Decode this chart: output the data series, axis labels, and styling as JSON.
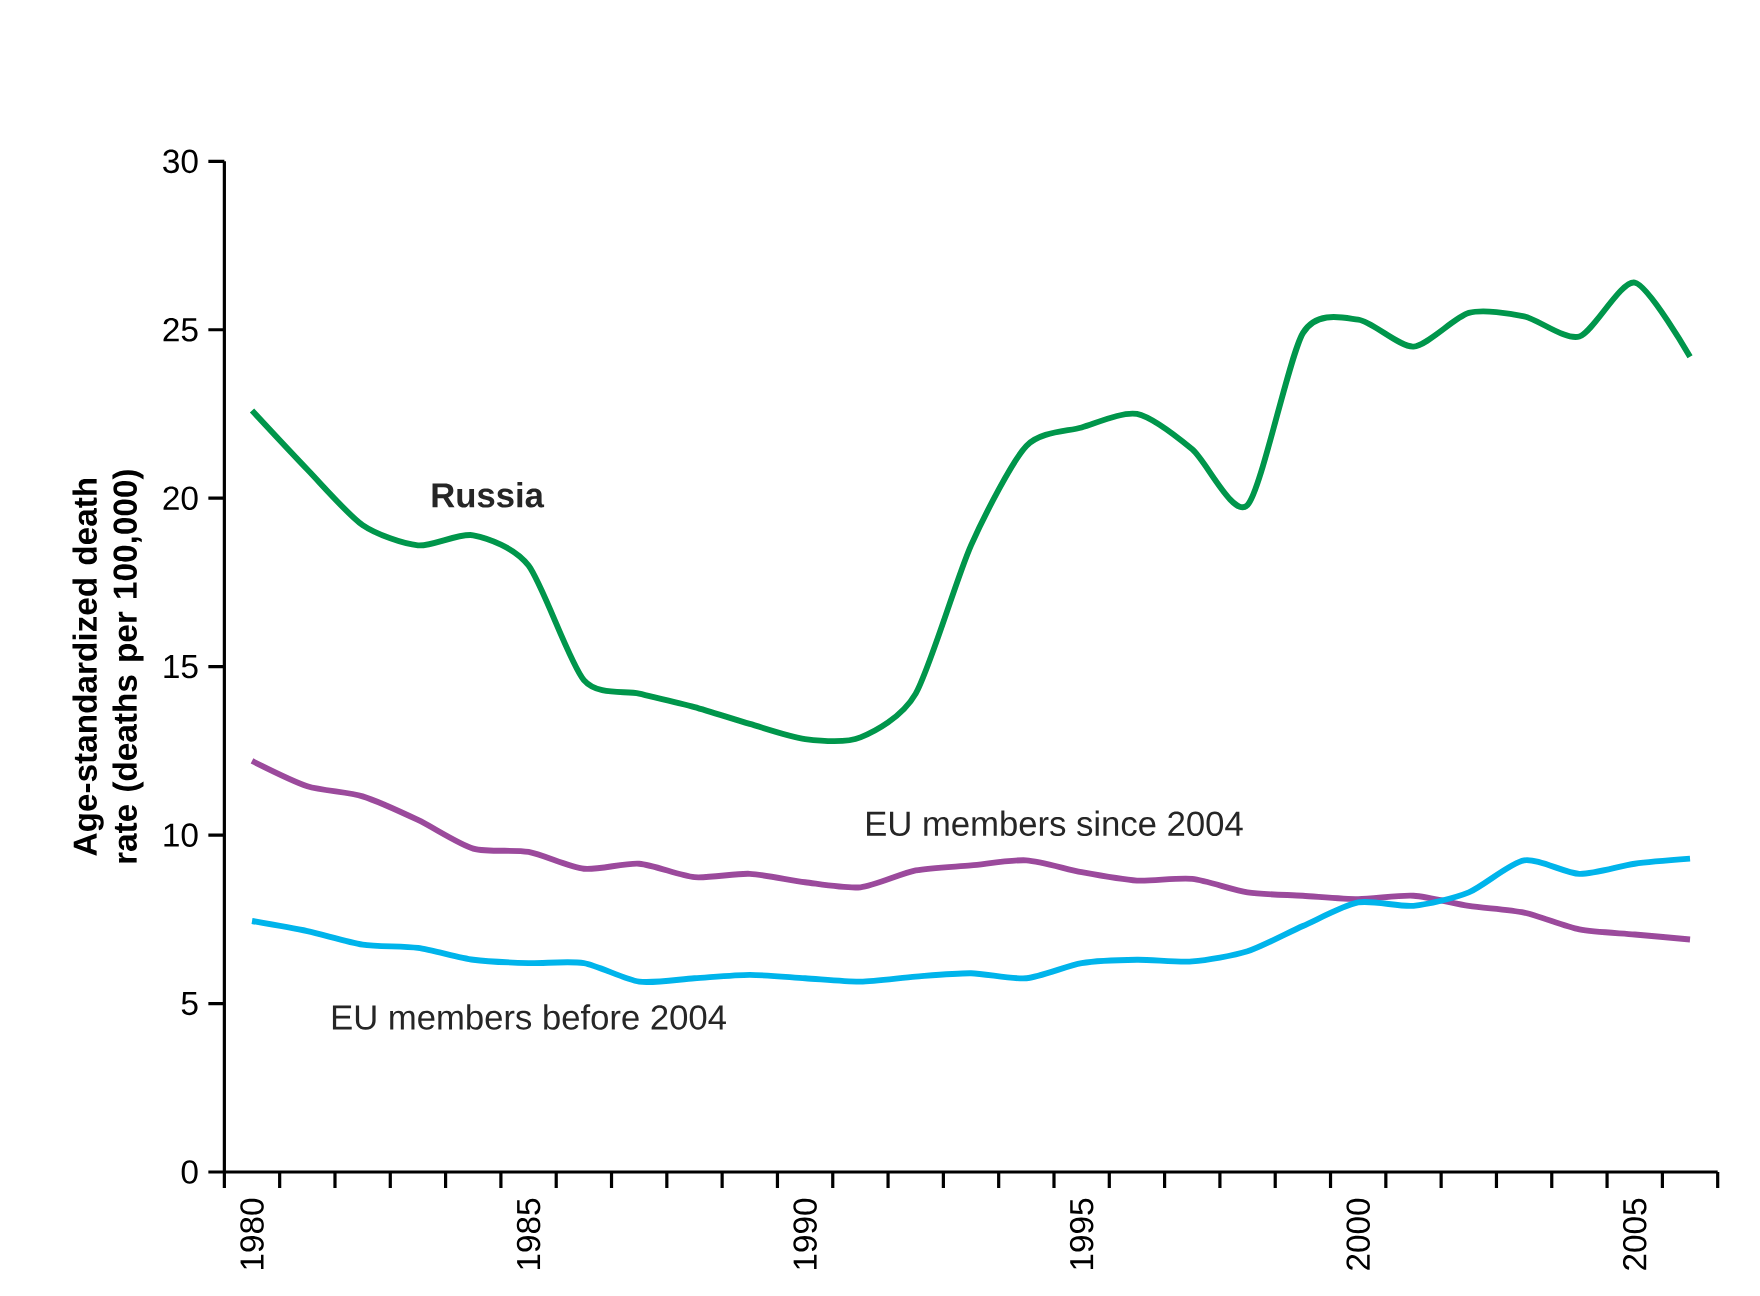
{
  "chart_data": {
    "type": "line",
    "ylabel": "Age-standardized death rate (deaths per 100,000)",
    "categories": [
      "1980",
      null,
      null,
      null,
      null,
      "1985",
      null,
      null,
      null,
      null,
      "1990",
      null,
      null,
      null,
      null,
      "1995",
      null,
      null,
      null,
      null,
      "2000",
      null,
      null,
      null,
      null,
      "2005",
      null
    ],
    "ylim": [
      0,
      30
    ],
    "yticks": [
      0,
      5,
      10,
      15,
      20,
      25,
      30
    ],
    "series": [
      {
        "name": "Russia",
        "color": "#00964b",
        "values": [
          22.6,
          20.85,
          19.2,
          18.6,
          18.9,
          18.0,
          14.6,
          14.2,
          13.8,
          13.3,
          12.85,
          12.9,
          14.2,
          18.6,
          21.55,
          22.1,
          22.5,
          21.45,
          19.8,
          24.9,
          25.3,
          24.5,
          25.5,
          25.4,
          24.8,
          26.4,
          24.2
        ]
      },
      {
        "name": "EU members since 2004",
        "color": "#9b4a9c",
        "values": [
          12.2,
          11.45,
          11.15,
          10.45,
          9.6,
          9.5,
          9.0,
          9.15,
          8.75,
          8.85,
          8.6,
          8.45,
          8.95,
          9.1,
          9.25,
          8.9,
          8.65,
          8.7,
          8.3,
          8.2,
          8.1,
          8.2,
          7.9,
          7.7,
          7.2,
          7.05,
          6.9
        ]
      },
      {
        "name": "EU members before 2004",
        "color": "#00b4eb",
        "values": [
          7.45,
          7.15,
          6.75,
          6.65,
          6.3,
          6.2,
          6.2,
          5.65,
          5.75,
          5.85,
          5.75,
          5.65,
          5.8,
          5.9,
          5.75,
          6.2,
          6.3,
          6.25,
          6.55,
          7.3,
          8.0,
          7.9,
          8.3,
          9.25,
          8.85,
          9.15,
          9.3
        ]
      }
    ]
  }
}
